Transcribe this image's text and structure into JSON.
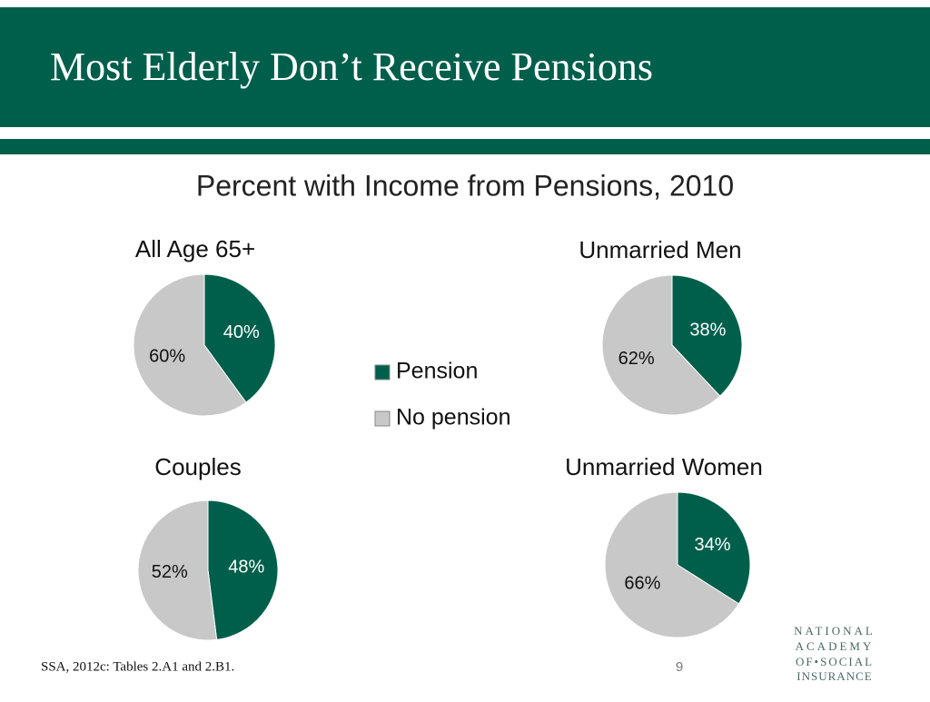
{
  "slide": {
    "title": "Most Elderly Don’t Receive Pensions",
    "subtitle": "Percent with Income from Pensions, 2010",
    "source": "SSA, 2012c: Tables 2.A1 and 2.B1.",
    "page": 9,
    "logo": [
      "NATIONAL",
      "ACADEMY",
      "OF•SOCIAL",
      "INSURANCE"
    ]
  },
  "chart_data": [
    {
      "type": "pie",
      "title": "All Age 65+",
      "categories": [
        "Pension",
        "No pension"
      ],
      "values": [
        40,
        60
      ],
      "value_labels": [
        "40%",
        "60%"
      ],
      "colors": [
        "#005f4b",
        "#c8c8c8"
      ],
      "legend": "right"
    },
    {
      "type": "pie",
      "title": "Unmarried Men",
      "categories": [
        "Pension",
        "No pension"
      ],
      "values": [
        38,
        62
      ],
      "value_labels": [
        "38%",
        "62%"
      ],
      "colors": [
        "#005f4b",
        "#c8c8c8"
      ]
    },
    {
      "type": "pie",
      "title": "Couples",
      "categories": [
        "Pension",
        "No pension"
      ],
      "values": [
        48,
        52
      ],
      "value_labels": [
        "48%",
        "52%"
      ],
      "colors": [
        "#005f4b",
        "#c8c8c8"
      ]
    },
    {
      "type": "pie",
      "title": "Unmarried Women",
      "categories": [
        "Pension",
        "No pension"
      ],
      "values": [
        34,
        66
      ],
      "value_labels": [
        "34%",
        "66%"
      ],
      "colors": [
        "#005f4b",
        "#c8c8c8"
      ]
    }
  ]
}
